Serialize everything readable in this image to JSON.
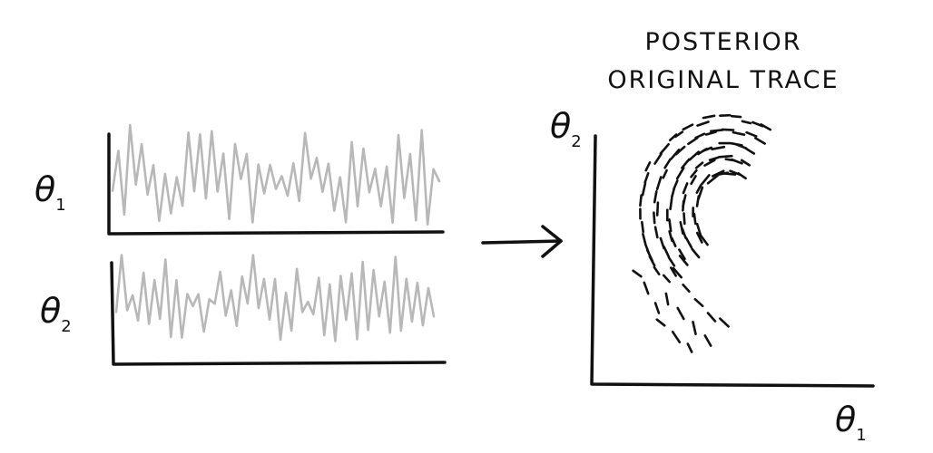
{
  "title": {
    "line1": "POSTERIOR",
    "line2": "ORIGINAL TRACE"
  },
  "trace_panels": [
    {
      "label": "θ",
      "subscript": "1"
    },
    {
      "label": "θ",
      "subscript": "2"
    }
  ],
  "posterior_axes": {
    "y_label": "θ",
    "y_subscript": "2",
    "x_label": "θ",
    "x_subscript": "1"
  },
  "colors": {
    "ink": "#111111",
    "trace": "#b8b8b8"
  },
  "icons": {
    "arrow": "right-arrow-icon"
  }
}
